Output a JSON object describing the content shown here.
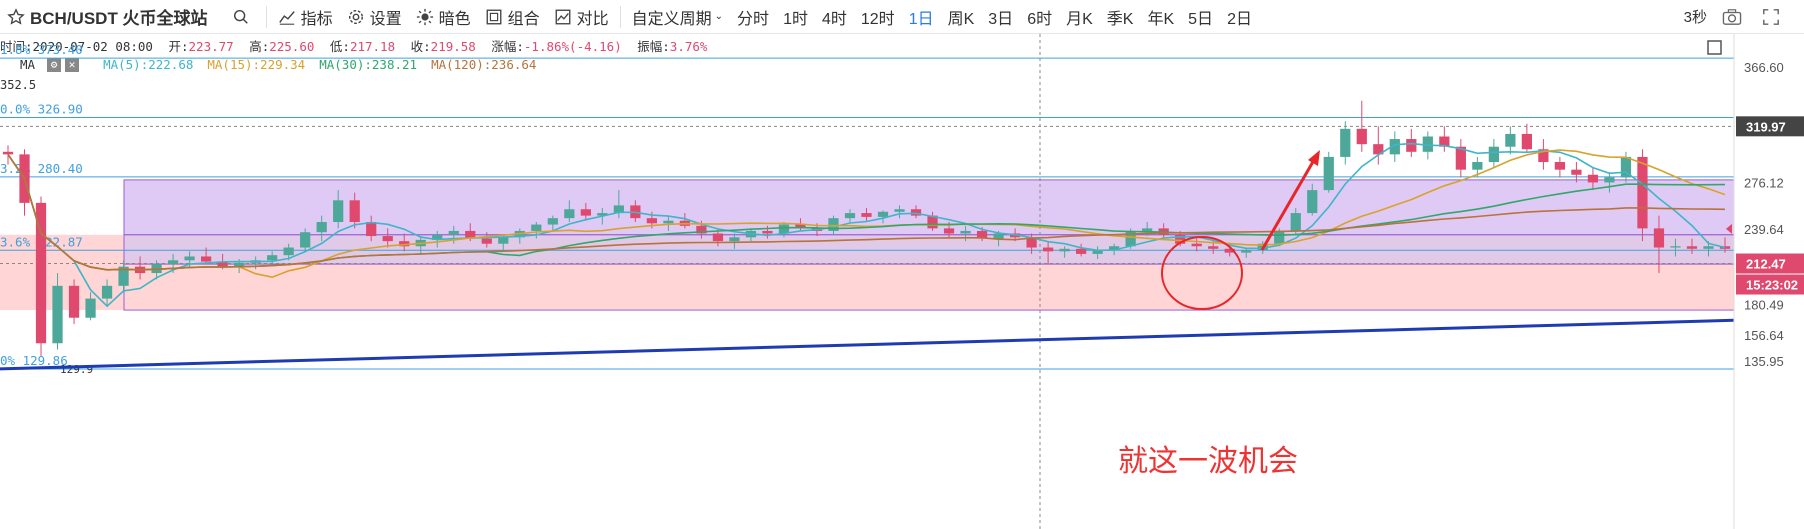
{
  "toolbar": {
    "symbol": "BCH/USDT 火币全球站",
    "indicators": "指标",
    "settings": "设置",
    "dark": "暗色",
    "combo": "组合",
    "compare": "对比",
    "custom_period": "自定义周期",
    "periods": [
      "分时",
      "1时",
      "4时",
      "12时",
      "1日",
      "周K",
      "3日",
      "6时",
      "月K",
      "季K",
      "年K",
      "5日",
      "2日"
    ],
    "active_period": "1日",
    "refresh": "3秒"
  },
  "info": {
    "time_label": "时间:",
    "time": "2020-07-02 08:00",
    "open_label": "开:",
    "open": "223.77",
    "high_label": "高:",
    "high": "225.60",
    "low_label": "低:",
    "low": "217.18",
    "close_label": "收:",
    "close": "219.58",
    "change_label": "涨幅:",
    "change": "-1.86%(-4.16)",
    "amp_label": "振幅:",
    "amp": "3.76%"
  },
  "ma": {
    "label": "MA",
    "ma5": "MA(5):222.68",
    "ma15": "MA(15):229.34",
    "ma30": "MA(30):238.21",
    "ma120": "MA(120):236.64"
  },
  "annotation": "就这一波机会",
  "colors": {
    "up": "#4da89a",
    "down": "#e0496e",
    "ma5": "#3fb5c9",
    "ma15": "#d9a22b",
    "ma30": "#2fa86a",
    "ma120": "#b8733a",
    "fib": "#3fa0e0",
    "trend": "#1f3bb3",
    "box_purple": "#c9a7ee",
    "box_pink": "#ffc7c7"
  },
  "chart_data": {
    "type": "candlestick",
    "y_ticks": [
      "366.60",
      "276.12",
      "239.64",
      "180.49",
      "156.64",
      "135.95"
    ],
    "price_badges": {
      "last": "319.97",
      "current": "212.47",
      "countdown": "15:23:02"
    },
    "fib_levels": [
      {
        "label": "1.8% 373.40",
        "value": 373.4
      },
      {
        "label": "0.0% 326.90",
        "value": 326.9
      },
      {
        "label": "3.2% 280.40",
        "value": 280.4
      },
      {
        "label": "3.6% 222.87",
        "value": 222.87
      },
      {
        "label": "0% 129.86",
        "value": 129.86
      }
    ],
    "extra_labels": {
      "high_mark": "352.5",
      "low_mark": "129.9"
    },
    "box_upper": {
      "top": 278,
      "bottom": 235
    },
    "box_lower": {
      "top": 235,
      "bottom": 176
    },
    "box_mid": {
      "top": 235,
      "bottom": 212
    },
    "trend_line": {
      "start": 129.9,
      "end": 168
    },
    "ohlc": [
      [
        300,
        305,
        290,
        298
      ],
      [
        298,
        302,
        250,
        260
      ],
      [
        260,
        265,
        140,
        150
      ],
      [
        150,
        205,
        145,
        195
      ],
      [
        195,
        200,
        165,
        170
      ],
      [
        170,
        190,
        168,
        185
      ],
      [
        185,
        200,
        180,
        195
      ],
      [
        195,
        215,
        190,
        210
      ],
      [
        210,
        218,
        200,
        205
      ],
      [
        205,
        215,
        200,
        212
      ],
      [
        212,
        220,
        205,
        215
      ],
      [
        215,
        222,
        210,
        218
      ],
      [
        218,
        225,
        212,
        214
      ],
      [
        214,
        220,
        208,
        210
      ],
      [
        210,
        216,
        205,
        213
      ],
      [
        213,
        218,
        208,
        215
      ],
      [
        215,
        222,
        211,
        219
      ],
      [
        219,
        228,
        215,
        225
      ],
      [
        225,
        240,
        222,
        237
      ],
      [
        237,
        250,
        230,
        245
      ],
      [
        245,
        270,
        240,
        262
      ],
      [
        262,
        268,
        240,
        245
      ],
      [
        245,
        250,
        230,
        234
      ],
      [
        234,
        240,
        225,
        230
      ],
      [
        230,
        236,
        222,
        226
      ],
      [
        226,
        234,
        220,
        231
      ],
      [
        231,
        238,
        225,
        235
      ],
      [
        235,
        242,
        228,
        238
      ],
      [
        238,
        244,
        230,
        232
      ],
      [
        232,
        237,
        225,
        228
      ],
      [
        228,
        235,
        222,
        233
      ],
      [
        233,
        240,
        228,
        238
      ],
      [
        238,
        245,
        232,
        243
      ],
      [
        243,
        250,
        238,
        248
      ],
      [
        248,
        262,
        245,
        255
      ],
      [
        255,
        260,
        246,
        250
      ],
      [
        250,
        256,
        243,
        252
      ],
      [
        252,
        270,
        248,
        258
      ],
      [
        258,
        262,
        245,
        248
      ],
      [
        248,
        253,
        240,
        244
      ],
      [
        244,
        250,
        238,
        246
      ],
      [
        246,
        252,
        240,
        242
      ],
      [
        242,
        246,
        232,
        236
      ],
      [
        236,
        240,
        226,
        230
      ],
      [
        230,
        236,
        224,
        233
      ],
      [
        233,
        240,
        230,
        238
      ],
      [
        238,
        242,
        232,
        236
      ],
      [
        236,
        245,
        233,
        243
      ],
      [
        243,
        248,
        238,
        240
      ],
      [
        240,
        244,
        234,
        238
      ],
      [
        238,
        250,
        235,
        248
      ],
      [
        248,
        255,
        244,
        252
      ],
      [
        252,
        256,
        246,
        249
      ],
      [
        249,
        254,
        244,
        253
      ],
      [
        253,
        258,
        248,
        255
      ],
      [
        255,
        258,
        248,
        250
      ],
      [
        250,
        253,
        238,
        240
      ],
      [
        240,
        245,
        232,
        236
      ],
      [
        236,
        242,
        230,
        238
      ],
      [
        238,
        241,
        230,
        232
      ],
      [
        232,
        238,
        226,
        236
      ],
      [
        236,
        240,
        230,
        233
      ],
      [
        233,
        236,
        220,
        225
      ],
      [
        225,
        230,
        212,
        222
      ],
      [
        222,
        226,
        217,
        224
      ],
      [
        224,
        228,
        218,
        220
      ],
      [
        220,
        226,
        216,
        223
      ],
      [
        223,
        228,
        219,
        226
      ],
      [
        226,
        240,
        224,
        238
      ],
      [
        238,
        245,
        234,
        240
      ],
      [
        240,
        244,
        232,
        235
      ],
      [
        235,
        238,
        226,
        228
      ],
      [
        228,
        232,
        222,
        226
      ],
      [
        226,
        230,
        220,
        224
      ],
      [
        224,
        228,
        218,
        221
      ],
      [
        221,
        225,
        217,
        223
      ],
      [
        223,
        230,
        220,
        228
      ],
      [
        228,
        240,
        226,
        238
      ],
      [
        238,
        256,
        235,
        252
      ],
      [
        252,
        275,
        250,
        270
      ],
      [
        270,
        300,
        268,
        296
      ],
      [
        296,
        324,
        290,
        318
      ],
      [
        318,
        340,
        300,
        306
      ],
      [
        306,
        320,
        290,
        298
      ],
      [
        298,
        316,
        292,
        310
      ],
      [
        310,
        318,
        296,
        300
      ],
      [
        300,
        316,
        294,
        312
      ],
      [
        312,
        320,
        300,
        304
      ],
      [
        304,
        310,
        280,
        286
      ],
      [
        286,
        296,
        280,
        292
      ],
      [
        292,
        310,
        288,
        304
      ],
      [
        304,
        320,
        298,
        314
      ],
      [
        314,
        322,
        300,
        302
      ],
      [
        302,
        310,
        286,
        292
      ],
      [
        292,
        296,
        280,
        286
      ],
      [
        286,
        292,
        276,
        282
      ],
      [
        282,
        288,
        270,
        276
      ],
      [
        276,
        284,
        268,
        280
      ],
      [
        280,
        300,
        276,
        296
      ],
      [
        296,
        302,
        230,
        240
      ],
      [
        240,
        250,
        205,
        225
      ],
      [
        225,
        232,
        218,
        226
      ],
      [
        226,
        232,
        220,
        224
      ],
      [
        224,
        230,
        218,
        226
      ],
      [
        226,
        233,
        221,
        224
      ]
    ]
  }
}
